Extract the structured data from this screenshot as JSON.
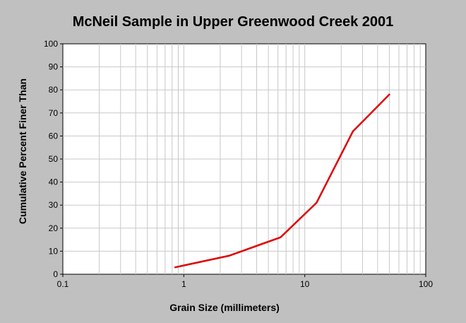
{
  "chart_data": {
    "type": "line",
    "title": "McNeil Sample in Upper Greenwood Creek 2001",
    "xlabel": "Grain Size (millimeters)",
    "ylabel": "Cumulative Percent Finer Than",
    "xscale": "log",
    "xlim": [
      0.1,
      100
    ],
    "ylim": [
      0,
      100
    ],
    "x_ticks": [
      "0.1",
      "1",
      "10",
      "100"
    ],
    "y_ticks": [
      "0",
      "10",
      "20",
      "30",
      "40",
      "50",
      "60",
      "70",
      "80",
      "90",
      "100"
    ],
    "grid": true,
    "legend": "none",
    "series": [
      {
        "color": "#e00000",
        "x": [
          0.85,
          2.36,
          6.3,
          12.5,
          25,
          50
        ],
        "y": [
          3,
          8,
          16,
          31,
          62,
          78
        ]
      }
    ]
  }
}
